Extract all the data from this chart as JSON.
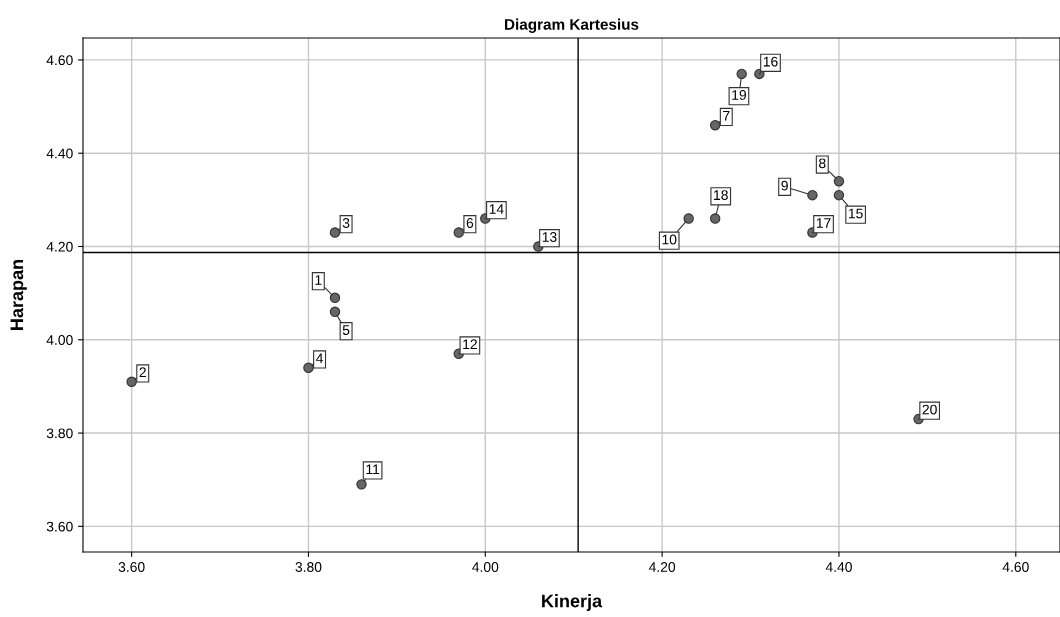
{
  "chart_data": {
    "type": "scatter",
    "title": "Diagram Kartesius",
    "xlabel": "Kinerja",
    "ylabel": "Harapan",
    "x": [
      3.83,
      3.6,
      3.83,
      3.8,
      3.83,
      3.97,
      4.26,
      4.4,
      4.37,
      4.23,
      3.86,
      3.97,
      4.06,
      4.0,
      4.4,
      4.31,
      4.37,
      4.26,
      4.29,
      4.49
    ],
    "values": [
      4.09,
      3.91,
      4.23,
      3.94,
      4.06,
      4.23,
      4.46,
      4.34,
      4.31,
      4.26,
      3.69,
      3.97,
      4.2,
      4.26,
      4.31,
      4.57,
      4.23,
      4.26,
      4.57,
      3.83
    ],
    "color": "#666666",
    "marker": "circle",
    "xlim": [
      3.545,
      4.65
    ],
    "ylim": [
      3.545,
      4.647
    ],
    "xticks": [
      {
        "value": 3.6,
        "label": "3.60"
      },
      {
        "value": 3.8,
        "label": "3.80"
      },
      {
        "value": 4.0,
        "label": "4.00"
      },
      {
        "value": 4.2,
        "label": "4.20"
      },
      {
        "value": 4.4,
        "label": "4.40"
      },
      {
        "value": 4.6,
        "label": "4.60"
      }
    ],
    "yticks": [
      {
        "value": 3.6,
        "label": "3.60"
      },
      {
        "value": 3.8,
        "label": "3.80"
      },
      {
        "value": 4.0,
        "label": "4.00"
      },
      {
        "value": 4.2,
        "label": "4.20"
      },
      {
        "value": 4.4,
        "label": "4.40"
      },
      {
        "value": 4.6,
        "label": "4.60"
      }
    ],
    "grid": true,
    "ref_lines": [
      {
        "axis": "x",
        "value": 4.105,
        "color": "#000000"
      },
      {
        "axis": "y",
        "value": 4.187,
        "color": "#000000"
      }
    ],
    "annotations": [
      {
        "text": "1",
        "x": 3.83,
        "y": 4.09
      },
      {
        "text": "2",
        "x": 3.6,
        "y": 3.91
      },
      {
        "text": "3",
        "x": 3.83,
        "y": 4.23
      },
      {
        "text": "4",
        "x": 3.8,
        "y": 3.94
      },
      {
        "text": "5",
        "x": 3.83,
        "y": 4.06
      },
      {
        "text": "6",
        "x": 3.97,
        "y": 4.23
      },
      {
        "text": "7",
        "x": 4.26,
        "y": 4.46
      },
      {
        "text": "8",
        "x": 4.4,
        "y": 4.34
      },
      {
        "text": "9",
        "x": 4.37,
        "y": 4.31
      },
      {
        "text": "10",
        "x": 4.23,
        "y": 4.26
      },
      {
        "text": "11",
        "x": 3.86,
        "y": 3.69
      },
      {
        "text": "12",
        "x": 3.97,
        "y": 3.97
      },
      {
        "text": "13",
        "x": 4.06,
        "y": 4.2
      },
      {
        "text": "14",
        "x": 4.0,
        "y": 4.26
      },
      {
        "text": "15",
        "x": 4.4,
        "y": 4.31
      },
      {
        "text": "16",
        "x": 4.31,
        "y": 4.57
      },
      {
        "text": "17",
        "x": 4.37,
        "y": 4.23
      },
      {
        "text": "18",
        "x": 4.26,
        "y": 4.26
      },
      {
        "text": "19",
        "x": 4.29,
        "y": 4.57
      },
      {
        "text": "20",
        "x": 4.49,
        "y": 3.83
      }
    ]
  }
}
